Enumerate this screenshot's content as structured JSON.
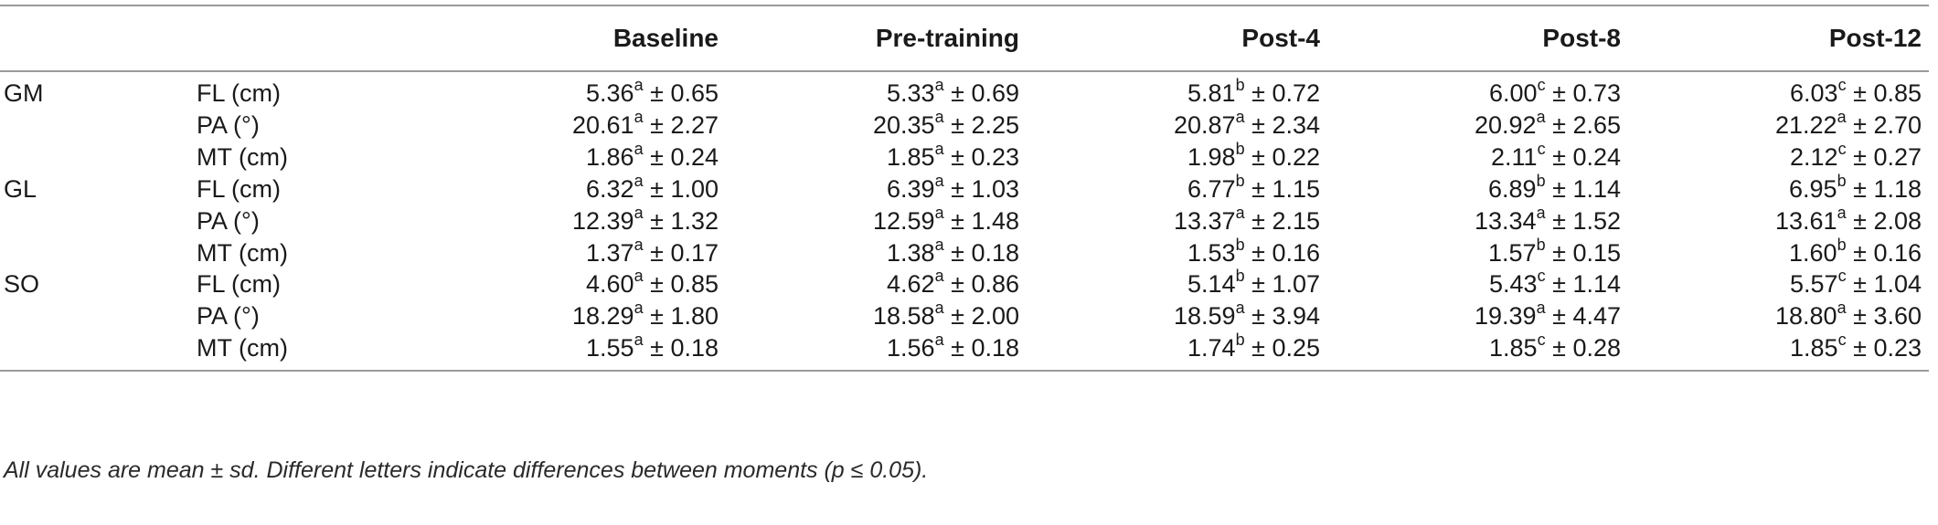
{
  "headers": [
    "",
    "",
    "Baseline",
    "Pre-training",
    "Post-4",
    "Post-8",
    "Post-12"
  ],
  "rows": [
    {
      "muscle": "GM",
      "param": "FL (cm)",
      "cells": [
        {
          "v": "5.36",
          "s": "a",
          "sd": "0.65"
        },
        {
          "v": "5.33",
          "s": "a",
          "sd": "0.69"
        },
        {
          "v": "5.81",
          "s": "b",
          "sd": "0.72"
        },
        {
          "v": "6.00",
          "s": "c",
          "sd": "0.73"
        },
        {
          "v": "6.03",
          "s": "c",
          "sd": "0.85"
        }
      ]
    },
    {
      "muscle": "",
      "param": "PA (°)",
      "cells": [
        {
          "v": "20.61",
          "s": "a",
          "sd": "2.27"
        },
        {
          "v": "20.35",
          "s": "a",
          "sd": "2.25"
        },
        {
          "v": "20.87",
          "s": "a",
          "sd": "2.34"
        },
        {
          "v": "20.92",
          "s": "a",
          "sd": "2.65"
        },
        {
          "v": "21.22",
          "s": "a",
          "sd": "2.70"
        }
      ]
    },
    {
      "muscle": "",
      "param": "MT (cm)",
      "cells": [
        {
          "v": "1.86",
          "s": "a",
          "sd": "0.24"
        },
        {
          "v": "1.85",
          "s": "a",
          "sd": "0.23"
        },
        {
          "v": "1.98",
          "s": "b",
          "sd": "0.22"
        },
        {
          "v": "2.11",
          "s": "c",
          "sd": "0.24"
        },
        {
          "v": "2.12",
          "s": "c",
          "sd": "0.27"
        }
      ]
    },
    {
      "muscle": "GL",
      "param": "FL (cm)",
      "cells": [
        {
          "v": "6.32",
          "s": "a",
          "sd": "1.00"
        },
        {
          "v": "6.39",
          "s": "a",
          "sd": "1.03"
        },
        {
          "v": "6.77",
          "s": "b",
          "sd": "1.15"
        },
        {
          "v": "6.89",
          "s": "b",
          "sd": "1.14"
        },
        {
          "v": "6.95",
          "s": "b",
          "sd": "1.18"
        }
      ]
    },
    {
      "muscle": "",
      "param": "PA (°)",
      "cells": [
        {
          "v": "12.39",
          "s": "a",
          "sd": "1.32"
        },
        {
          "v": "12.59",
          "s": "a",
          "sd": "1.48"
        },
        {
          "v": "13.37",
          "s": "a",
          "sd": "2.15"
        },
        {
          "v": "13.34",
          "s": "a",
          "sd": "1.52"
        },
        {
          "v": "13.61",
          "s": "a",
          "sd": "2.08"
        }
      ]
    },
    {
      "muscle": "",
      "param": "MT (cm)",
      "cells": [
        {
          "v": "1.37",
          "s": "a",
          "sd": "0.17"
        },
        {
          "v": "1.38",
          "s": "a",
          "sd": "0.18"
        },
        {
          "v": "1.53",
          "s": "b",
          "sd": "0.16"
        },
        {
          "v": "1.57",
          "s": "b",
          "sd": "0.15"
        },
        {
          "v": "1.60",
          "s": "b",
          "sd": "0.16"
        }
      ]
    },
    {
      "muscle": "SO",
      "param": "FL (cm)",
      "cells": [
        {
          "v": "4.60",
          "s": "a",
          "sd": "0.85"
        },
        {
          "v": "4.62",
          "s": "a",
          "sd": "0.86"
        },
        {
          "v": "5.14",
          "s": "b",
          "sd": "1.07"
        },
        {
          "v": "5.43",
          "s": "c",
          "sd": "1.14"
        },
        {
          "v": "5.57",
          "s": "c",
          "sd": "1.04"
        }
      ]
    },
    {
      "muscle": "",
      "param": "PA (°)",
      "cells": [
        {
          "v": "18.29",
          "s": "a",
          "sd": "1.80"
        },
        {
          "v": "18.58",
          "s": "a",
          "sd": "2.00"
        },
        {
          "v": "18.59",
          "s": "a",
          "sd": "3.94"
        },
        {
          "v": "19.39",
          "s": "a",
          "sd": "4.47"
        },
        {
          "v": "18.80",
          "s": "a",
          "sd": "3.60"
        }
      ]
    },
    {
      "muscle": "",
      "param": "MT (cm)",
      "cells": [
        {
          "v": "1.55",
          "s": "a",
          "sd": "0.18"
        },
        {
          "v": "1.56",
          "s": "a",
          "sd": "0.18"
        },
        {
          "v": "1.74",
          "s": "b",
          "sd": "0.25"
        },
        {
          "v": "1.85",
          "s": "c",
          "sd": "0.28"
        },
        {
          "v": "1.85",
          "s": "c",
          "sd": "0.23"
        }
      ]
    }
  ],
  "pm_symbol": "±",
  "footnote": "All values are mean ± sd. Different letters indicate differences between moments (p ≤ 0.05)."
}
